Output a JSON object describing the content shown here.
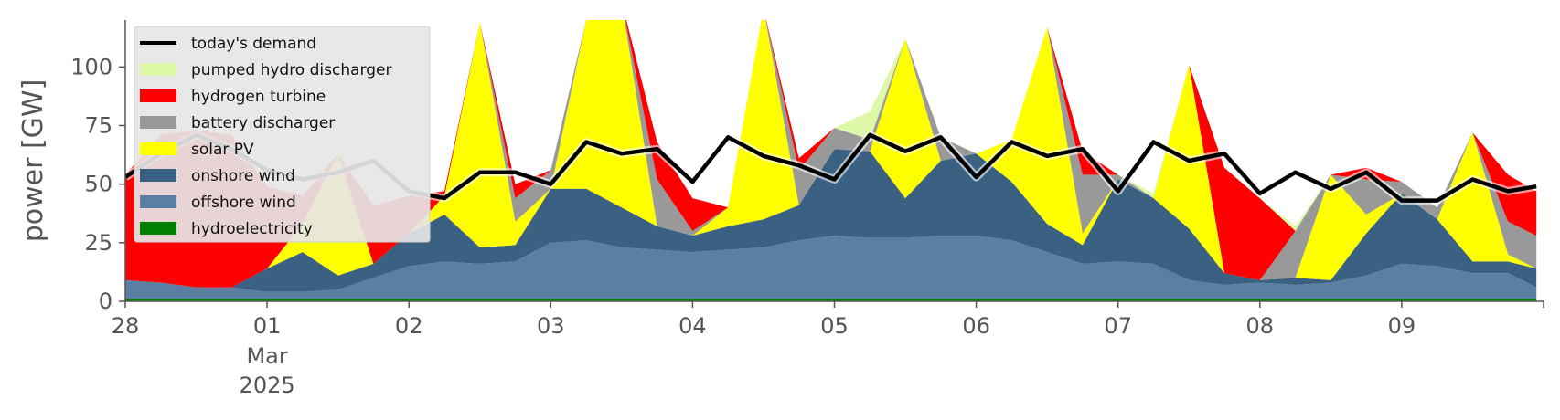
{
  "chart_data": {
    "type": "area",
    "ylabel": "power [GW]",
    "ylim": [
      0,
      120
    ],
    "xlim": [
      0,
      10
    ],
    "yticks": [
      0,
      25,
      50,
      75,
      100
    ],
    "grid": false,
    "legend_position": "top-left",
    "x_ticks": [
      {
        "x": 0,
        "label": "28",
        "sub": []
      },
      {
        "x": 1,
        "label": "01",
        "sub": [
          "Mar",
          "2025"
        ]
      },
      {
        "x": 2,
        "label": "02",
        "sub": []
      },
      {
        "x": 3,
        "label": "03",
        "sub": []
      },
      {
        "x": 4,
        "label": "04",
        "sub": []
      },
      {
        "x": 5,
        "label": "05",
        "sub": []
      },
      {
        "x": 6,
        "label": "06",
        "sub": []
      },
      {
        "x": 7,
        "label": "07",
        "sub": []
      },
      {
        "x": 8,
        "label": "08",
        "sub": []
      },
      {
        "x": 9,
        "label": "09",
        "sub": []
      }
    ],
    "x_unit": "days since 28 Feb 2025",
    "x": [
      0,
      0.25,
      0.5,
      0.75,
      1,
      1.25,
      1.5,
      1.75,
      2,
      2.25,
      2.5,
      2.75,
      3,
      3.25,
      3.5,
      3.75,
      4,
      4.25,
      4.5,
      4.75,
      5,
      5.25,
      5.5,
      5.75,
      6,
      6.25,
      6.5,
      6.75,
      7,
      7.25,
      7.5,
      7.75,
      8,
      8.25,
      8.5,
      8.75,
      9,
      9.25,
      9.5,
      9.75,
      9.95
    ],
    "series": [
      {
        "name": "hydroelectricity",
        "color": "#008000",
        "values": [
          1,
          1,
          1,
          1,
          1,
          1,
          1,
          1,
          1,
          1,
          1,
          1,
          1,
          1,
          1,
          1,
          1,
          1,
          1,
          1,
          1,
          1,
          1,
          1,
          1,
          1,
          1,
          1,
          1,
          1,
          1,
          1,
          1,
          1,
          1,
          1,
          1,
          1,
          1,
          1,
          1
        ]
      },
      {
        "name": "offshore wind",
        "color": "#5a7fa3",
        "values": [
          8,
          7,
          5,
          5,
          3,
          3,
          4,
          9,
          14,
          16,
          15,
          16,
          24,
          25,
          22,
          21,
          20,
          21,
          22,
          25,
          27,
          26,
          26,
          27,
          27,
          25,
          20,
          15,
          16,
          15,
          8,
          6,
          7,
          6,
          7,
          10,
          15,
          14,
          11,
          11,
          5
        ]
      },
      {
        "name": "onshore wind",
        "color": "#3b6182",
        "values": [
          0,
          0,
          0,
          0,
          10,
          17,
          6,
          6,
          14,
          20,
          7,
          7,
          23,
          22,
          17,
          10,
          7,
          10,
          12,
          15,
          37,
          37,
          17,
          32,
          35,
          25,
          12,
          8,
          35,
          28,
          22,
          5,
          1,
          3,
          1,
          18,
          30,
          20,
          5,
          5,
          8
        ]
      },
      {
        "name": "solar PV",
        "color": "#ffff00",
        "values": [
          0,
          0,
          0,
          0,
          0,
          12,
          52,
          0,
          0,
          8,
          96,
          10,
          0,
          72,
          88,
          0,
          0,
          8,
          90,
          0,
          0,
          0,
          68,
          0,
          0,
          18,
          84,
          5,
          0,
          0,
          70,
          0,
          0,
          0,
          45,
          8,
          0,
          0,
          55,
          3,
          0
        ]
      },
      {
        "name": "battery discharger",
        "color": "#999999",
        "values": [
          0,
          0,
          0,
          0,
          0,
          0,
          0,
          0,
          0,
          0,
          0,
          10,
          8,
          0,
          0,
          20,
          2,
          0,
          0,
          15,
          9,
          5,
          0,
          10,
          0,
          0,
          0,
          25,
          2,
          0,
          0,
          0,
          0,
          20,
          0,
          15,
          5,
          5,
          0,
          14,
          14
        ]
      },
      {
        "name": "hydrogen turbine",
        "color": "#ff0000",
        "values": [
          45,
          63,
          67,
          65,
          35,
          12,
          0,
          25,
          16,
          2,
          0,
          6,
          0,
          0,
          0,
          16,
          14,
          0,
          0,
          5,
          0,
          0,
          0,
          0,
          0,
          0,
          0,
          10,
          0,
          0,
          0,
          45,
          35,
          0,
          0,
          5,
          0,
          0,
          0,
          20,
          19
        ]
      },
      {
        "name": "pumped hydro discharger",
        "color": "#ddf9a8",
        "values": [
          0,
          0,
          0,
          0,
          0,
          0,
          0,
          0,
          0,
          0,
          0,
          0,
          0,
          0,
          0,
          0,
          0,
          0,
          0,
          0,
          0,
          12,
          0,
          0,
          0,
          0,
          0,
          0,
          0,
          2,
          0,
          0,
          0,
          2,
          0,
          0,
          0,
          0,
          0,
          0,
          0
        ]
      }
    ],
    "demand": {
      "name": "today's demand",
      "color": "#000000",
      "values": [
        53,
        63,
        71,
        65,
        56,
        52,
        55,
        60,
        47,
        44,
        55,
        55,
        50,
        68,
        63,
        65,
        51,
        70,
        62,
        58,
        52,
        71,
        64,
        70,
        53,
        68,
        62,
        65,
        47,
        68,
        60,
        63,
        46,
        55,
        48,
        55,
        43,
        43,
        52,
        47,
        49
      ]
    },
    "legend": [
      {
        "label": "today's demand",
        "kind": "line",
        "color": "#000000"
      },
      {
        "label": "pumped hydro discharger",
        "kind": "patch",
        "color": "#ddf9a8"
      },
      {
        "label": "hydrogen turbine",
        "kind": "patch",
        "color": "#ff0000"
      },
      {
        "label": "battery discharger",
        "kind": "patch",
        "color": "#999999"
      },
      {
        "label": "solar PV",
        "kind": "patch",
        "color": "#ffff00"
      },
      {
        "label": "onshore wind",
        "kind": "patch",
        "color": "#3b6182"
      },
      {
        "label": "offshore wind",
        "kind": "patch",
        "color": "#5a7fa3"
      },
      {
        "label": "hydroelectricity",
        "kind": "patch",
        "color": "#008000"
      }
    ]
  }
}
